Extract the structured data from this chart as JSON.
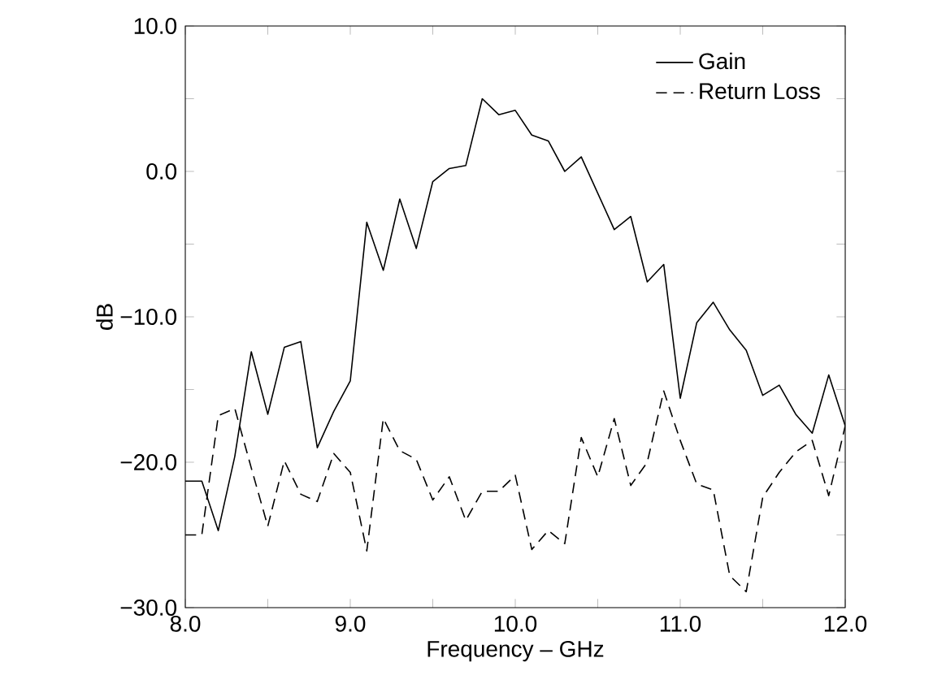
{
  "chart_data": {
    "type": "line",
    "xlabel": "Frequency – GHz",
    "ylabel": "dB",
    "x": [
      8.0,
      8.1,
      8.2,
      8.3,
      8.4,
      8.5,
      8.6,
      8.7,
      8.8,
      8.9,
      9.0,
      9.1,
      9.2,
      9.3,
      9.4,
      9.5,
      9.6,
      9.7,
      9.8,
      9.9,
      10.0,
      10.1,
      10.2,
      10.3,
      10.4,
      10.5,
      10.6,
      10.7,
      10.8,
      10.9,
      11.0,
      11.1,
      11.2,
      11.3,
      11.4,
      11.5,
      11.6,
      11.7,
      11.8,
      11.9,
      12.0
    ],
    "series": [
      {
        "name": "Gain",
        "color": "#000000",
        "line_style": "solid",
        "values": [
          -21.3,
          -21.3,
          -24.7,
          -19.6,
          -12.4,
          -16.7,
          -12.1,
          -11.7,
          -19.0,
          -16.5,
          -14.4,
          -3.5,
          -6.8,
          -1.9,
          -5.3,
          -0.7,
          0.2,
          0.4,
          5.0,
          3.9,
          4.2,
          2.5,
          2.1,
          0.0,
          1.0,
          -1.5,
          -4.0,
          -3.1,
          -7.6,
          -6.4,
          -15.6,
          -10.4,
          -9.0,
          -10.9,
          -12.3,
          -15.4,
          -14.7,
          -16.7,
          -18.0,
          -14.0,
          -17.5
        ]
      },
      {
        "name": "Return Loss",
        "color": "#000000",
        "line_style": "dashed",
        "values": [
          -25.0,
          -25.0,
          -16.8,
          -16.3,
          -20.4,
          -24.4,
          -19.9,
          -22.2,
          -22.7,
          -19.4,
          -20.7,
          -26.1,
          -17.0,
          -19.2,
          -19.8,
          -22.6,
          -21.0,
          -24.0,
          -22.0,
          -22.0,
          -20.9,
          -26.0,
          -24.7,
          -25.6,
          -18.3,
          -21.0,
          -17.0,
          -21.6,
          -20.0,
          -15.1,
          -18.5,
          -21.5,
          -21.9,
          -27.8,
          -28.9,
          -22.4,
          -20.7,
          -19.3,
          -18.5,
          -22.3,
          -17.5
        ]
      }
    ],
    "xlim": [
      8.0,
      12.0
    ],
    "ylim": [
      -30.0,
      10.0
    ],
    "xticks": [
      {
        "value": 8.0,
        "label": "8.0"
      },
      {
        "value": 8.5,
        "label": null
      },
      {
        "value": 9.0,
        "label": "9.0"
      },
      {
        "value": 9.5,
        "label": null
      },
      {
        "value": 10.0,
        "label": "10.0"
      },
      {
        "value": 10.5,
        "label": null
      },
      {
        "value": 11.0,
        "label": "11.0"
      },
      {
        "value": 11.5,
        "label": null
      },
      {
        "value": 12.0,
        "label": "12.0"
      }
    ],
    "yticks": [
      {
        "value": -30.0,
        "label": "−30.0"
      },
      {
        "value": -25.0,
        "label": null
      },
      {
        "value": -20.0,
        "label": "−20.0"
      },
      {
        "value": -15.0,
        "label": null
      },
      {
        "value": -10.0,
        "label": "−10.0"
      },
      {
        "value": -5.0,
        "label": null
      },
      {
        "value": 0.0,
        "label": "0.0"
      },
      {
        "value": 5.0,
        "label": null
      },
      {
        "value": 10.0,
        "label": "10.0"
      }
    ],
    "grid": false,
    "legend": "top right"
  }
}
